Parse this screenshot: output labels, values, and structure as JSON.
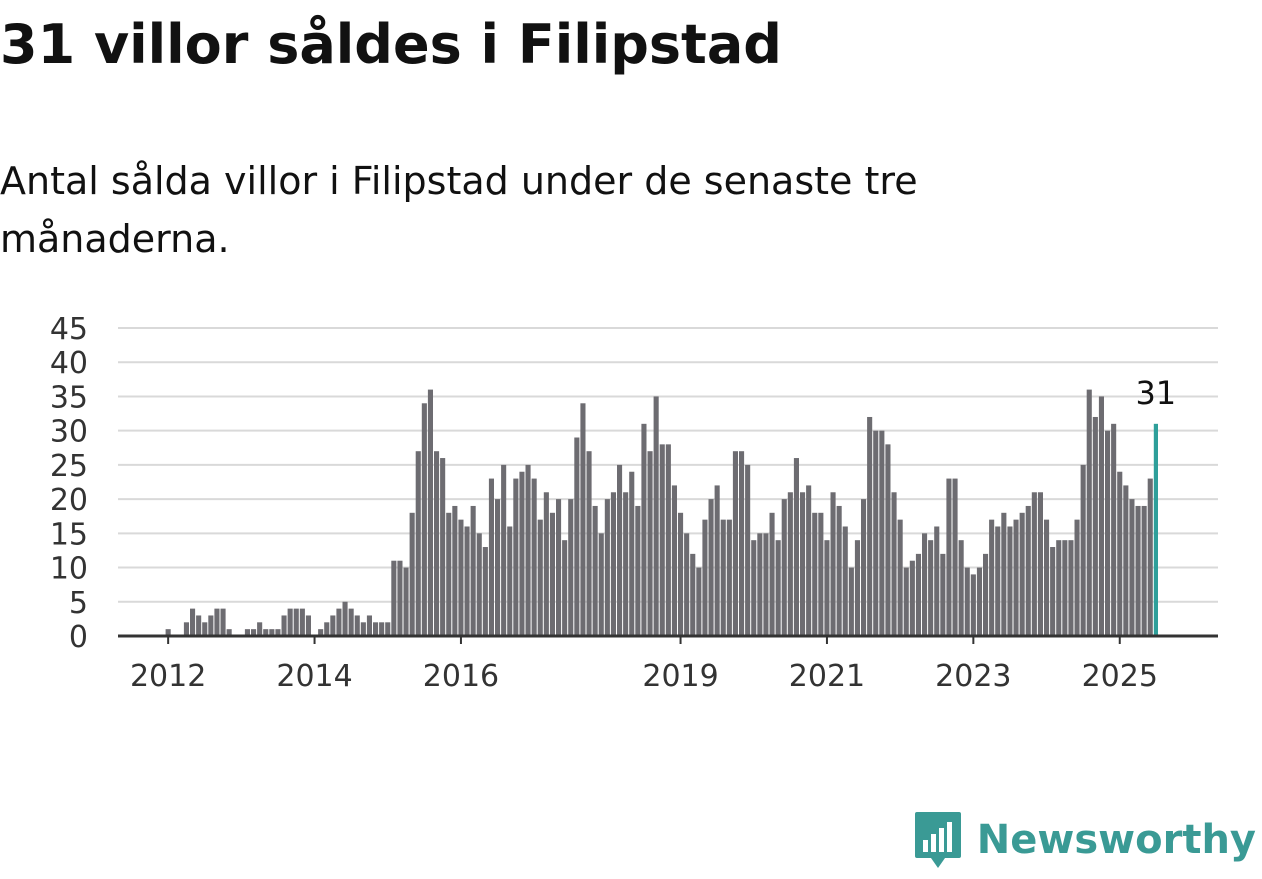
{
  "header": {
    "title": "31 villor såldes i Filipstad",
    "subtitle": "Antal sålda villor i Filipstad under de senaste tre månaderna."
  },
  "colors": {
    "bar": "#6d6c71",
    "highlight": "#2e9f9a",
    "grid": "#d9d9d9",
    "axis": "#333333",
    "brand": "#3a9a95"
  },
  "brand": {
    "name": "Newsworthy",
    "icon": "newsworthy-logo-icon"
  },
  "chart_data": {
    "type": "bar",
    "title": "31 villor såldes i Filipstad",
    "subtitle": "Antal sålda villor i Filipstad under de senaste tre månaderna.",
    "xlabel": "",
    "ylabel": "",
    "ylim": [
      0,
      45
    ],
    "yticks": [
      0,
      5,
      10,
      15,
      20,
      25,
      30,
      35,
      40,
      45
    ],
    "x_tick_labels": [
      "2012",
      "2014",
      "2016",
      "2019",
      "2021",
      "2023",
      "2025"
    ],
    "x_tick_indices": [
      0,
      24,
      48,
      84,
      108,
      132,
      156
    ],
    "grid": true,
    "frequency": "monthly, first bar 2012-01",
    "values": [
      1,
      0,
      0,
      2,
      4,
      3,
      2,
      3,
      4,
      4,
      1,
      0,
      0,
      1,
      1,
      2,
      1,
      1,
      1,
      3,
      4,
      4,
      4,
      3,
      0,
      1,
      2,
      3,
      4,
      5,
      4,
      3,
      2,
      3,
      2,
      2,
      2,
      11,
      11,
      10,
      18,
      27,
      34,
      36,
      27,
      26,
      18,
      19,
      17,
      16,
      19,
      15,
      13,
      23,
      20,
      25,
      16,
      23,
      24,
      25,
      23,
      17,
      21,
      18,
      20,
      14,
      20,
      29,
      34,
      27,
      19,
      15,
      20,
      21,
      25,
      21,
      24,
      19,
      31,
      27,
      35,
      28,
      28,
      22,
      18,
      15,
      12,
      10,
      17,
      20,
      22,
      17,
      17,
      27,
      27,
      25,
      14,
      15,
      15,
      18,
      14,
      20,
      21,
      26,
      21,
      22,
      18,
      18,
      14,
      21,
      19,
      16,
      10,
      14,
      20,
      32,
      30,
      30,
      28,
      21,
      17,
      10,
      11,
      12,
      15,
      14,
      16,
      12,
      23,
      23,
      14,
      10,
      9,
      10,
      12,
      17,
      16,
      18,
      16,
      17,
      18,
      19,
      21,
      21,
      17,
      13,
      14,
      14,
      14,
      17,
      25,
      36,
      32,
      35,
      30,
      31,
      24,
      22,
      20,
      19,
      19,
      23,
      31
    ],
    "highlight_last": true,
    "annotation": "31"
  }
}
